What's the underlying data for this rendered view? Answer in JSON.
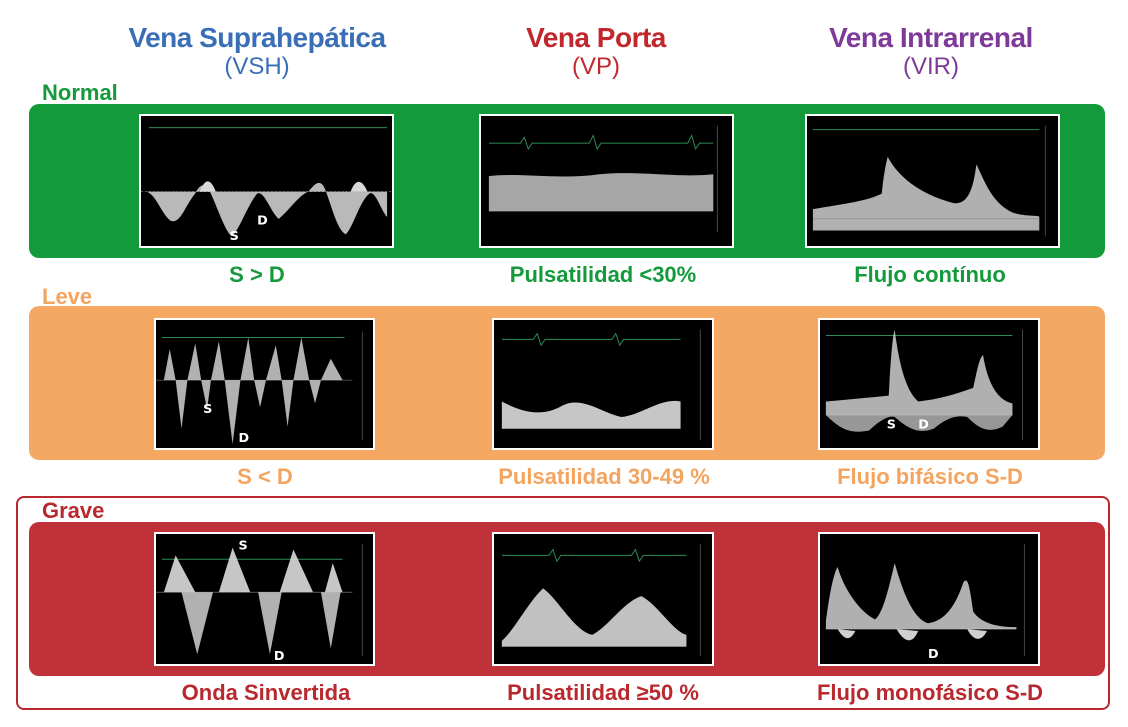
{
  "columns": [
    {
      "title": "Vena Suprahepática",
      "abbr": "(VSH)",
      "color": "#3a6fb7"
    },
    {
      "title": "Vena Porta",
      "abbr": "(VP)",
      "color": "#c1272d"
    },
    {
      "title": "Vena Intrarrenal",
      "abbr": "(VIR)",
      "color": "#7d3a98"
    }
  ],
  "rows": [
    {
      "label": "Normal",
      "label_color": "#149a3b",
      "band_color": "#129a3b",
      "captions": [
        "S > D",
        "Pulsatilidad <30%",
        "Flujo contínuo"
      ]
    },
    {
      "label": "Leve",
      "label_color": "#f4a45f",
      "band_color": "#f5a864",
      "captions": [
        "S < D",
        "Pulsatilidad 30-49 %",
        "Flujo bifásico S-D"
      ]
    },
    {
      "label": "Grave",
      "label_color": "#b8282e",
      "band_color": "#c1313a",
      "captions": [
        "Onda Sinvertida",
        "Pulsatilidad ≥50 %",
        "Flujo monofásico S-D"
      ]
    }
  ],
  "markers": {
    "s": "S",
    "d": "D"
  }
}
